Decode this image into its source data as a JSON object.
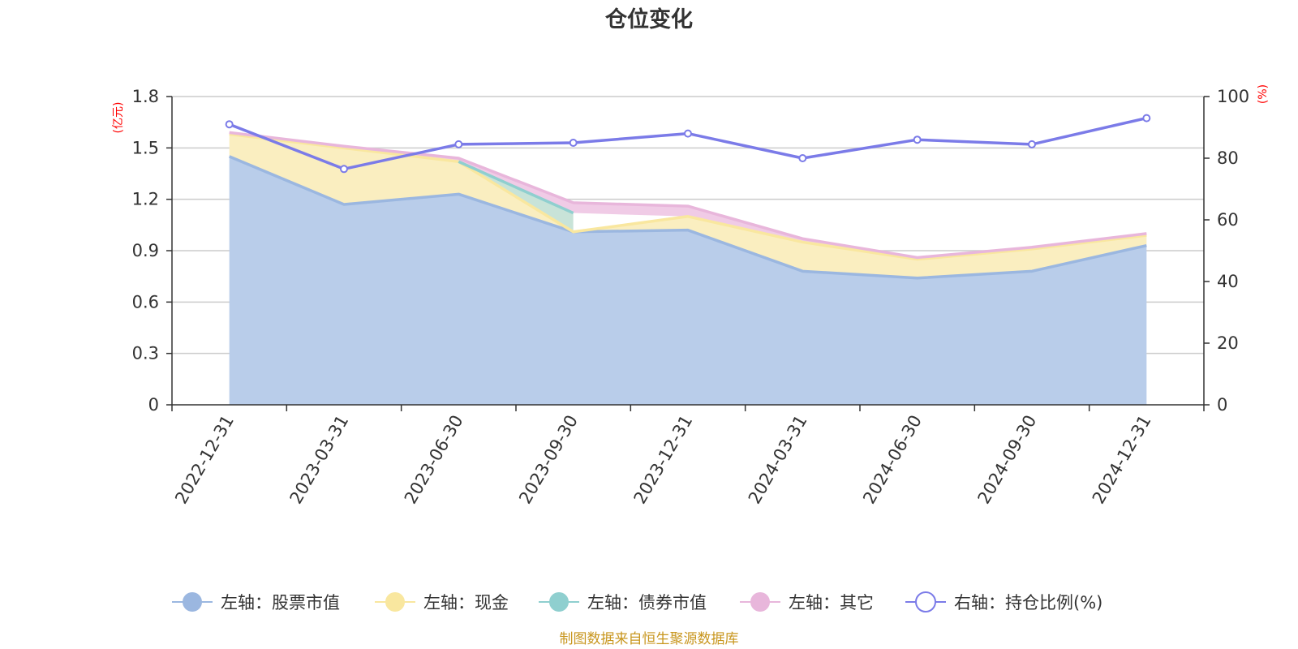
{
  "chart_data": {
    "type": "area",
    "title": "仓位变化",
    "categories": [
      "2022-12-31",
      "2023-03-31",
      "2023-06-30",
      "2023-09-30",
      "2023-12-31",
      "2024-03-31",
      "2024-06-30",
      "2024-09-30",
      "2024-12-31"
    ],
    "left_axis": {
      "unit": "(亿元)",
      "ylim": [
        0,
        1.8
      ],
      "ticks": [
        "0",
        "0.3",
        "0.6",
        "0.9",
        "1.2",
        "1.5",
        "1.8"
      ]
    },
    "right_axis": {
      "unit": "(%)",
      "ylim": [
        0,
        100
      ],
      "ticks": [
        "0",
        "20",
        "40",
        "60",
        "80",
        "100"
      ]
    },
    "grid": true,
    "legend_position": "bottom",
    "series": [
      {
        "name": "左轴：股票市值",
        "axis": "left",
        "stack": true,
        "color": "#9bb7e0",
        "fill": "#b9cdea",
        "values": [
          1.45,
          1.17,
          1.23,
          1.01,
          1.02,
          0.78,
          0.74,
          0.78,
          0.93
        ]
      },
      {
        "name": "左轴：现金",
        "axis": "left",
        "stack": true,
        "color": "#f9e79f",
        "fill": "#faeec0",
        "values": [
          0.13,
          0.33,
          0.19,
          0.0,
          0.08,
          0.17,
          0.11,
          0.13,
          0.06
        ]
      },
      {
        "name": "左轴：债券市值",
        "axis": "left",
        "stack": true,
        "color": "#8fcfcf",
        "fill": "#c8e3d8",
        "values": [
          null,
          null,
          0.0,
          0.11,
          null,
          null,
          null,
          null,
          null
        ]
      },
      {
        "name": "左轴：其它",
        "axis": "left",
        "stack": true,
        "color": "#e8b6db",
        "fill": "#f0cbe6",
        "values": [
          0.01,
          0.01,
          0.02,
          0.06,
          0.06,
          0.02,
          0.01,
          0.01,
          0.01
        ]
      },
      {
        "name": "右轴：持仓比例(%)",
        "axis": "right",
        "stack": false,
        "color": "#7b7be8",
        "values": [
          91.0,
          76.5,
          84.5,
          85.0,
          88.0,
          80.0,
          86.0,
          84.5,
          93.0
        ]
      }
    ]
  },
  "source_text": "制图数据来自恒生聚源数据库"
}
